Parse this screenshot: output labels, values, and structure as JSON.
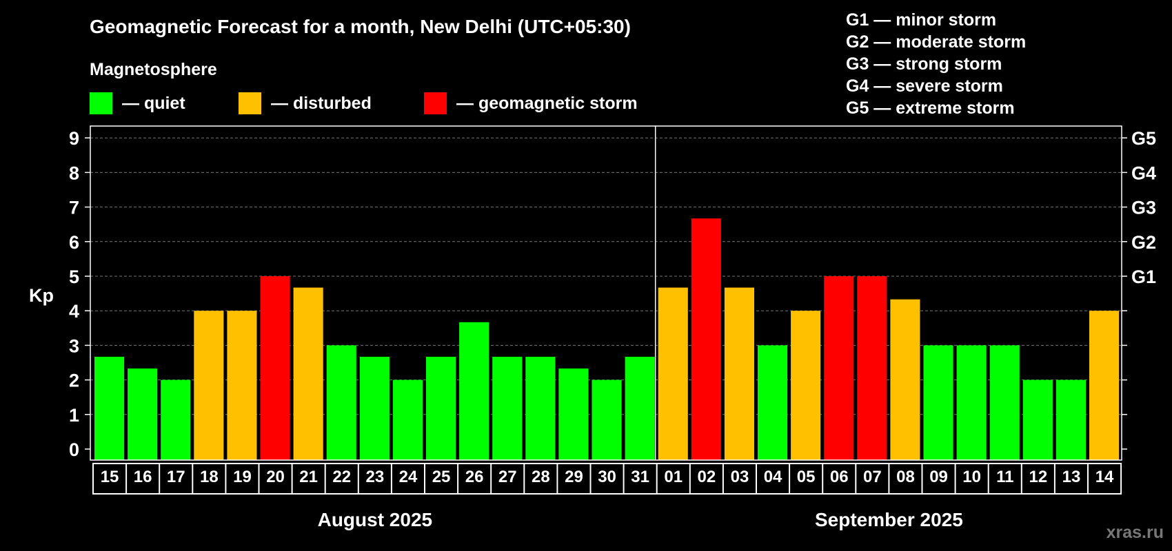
{
  "chart_data": {
    "type": "bar",
    "title": "Geomagnetic Forecast for a month, New Delhi (UTC+05:30)",
    "legend_title": "Magnetosphere",
    "legend": [
      {
        "key": "quiet",
        "label": "— quiet",
        "color": "#00FF00"
      },
      {
        "key": "disturbed",
        "label": "— disturbed",
        "color": "#FFC000"
      },
      {
        "key": "storm",
        "label": "— geomagnetic storm",
        "color": "#FF0000"
      }
    ],
    "storm_scale": [
      "G1 — minor storm",
      "G2 — moderate storm",
      "G3 — strong storm",
      "G4 — severe storm",
      "G5 — extreme storm"
    ],
    "ylabel": "Kp",
    "ylim": [
      0,
      9
    ],
    "yticks": [
      "0",
      "1",
      "2",
      "3",
      "4",
      "5",
      "6",
      "7",
      "8",
      "9"
    ],
    "right_ticks": [
      {
        "value": 5,
        "label": "G1"
      },
      {
        "value": 6,
        "label": "G2"
      },
      {
        "value": 7,
        "label": "G3"
      },
      {
        "value": 8,
        "label": "G4"
      },
      {
        "value": 9,
        "label": "G5"
      }
    ],
    "categories": [
      "15",
      "16",
      "17",
      "18",
      "19",
      "20",
      "21",
      "22",
      "23",
      "24",
      "25",
      "26",
      "27",
      "28",
      "29",
      "30",
      "31",
      "01",
      "02",
      "03",
      "04",
      "05",
      "06",
      "07",
      "08",
      "09",
      "10",
      "11",
      "12",
      "13",
      "14"
    ],
    "values": [
      2.67,
      2.33,
      2.0,
      4.0,
      4.0,
      5.0,
      4.67,
      3.0,
      2.67,
      2.0,
      2.67,
      3.67,
      2.67,
      2.67,
      2.33,
      2.0,
      2.67,
      4.67,
      6.67,
      4.67,
      3.0,
      4.0,
      5.0,
      5.0,
      4.33,
      3.0,
      3.0,
      3.0,
      2.0,
      2.0,
      4.0
    ],
    "levels": [
      "quiet",
      "quiet",
      "quiet",
      "disturbed",
      "disturbed",
      "storm",
      "disturbed",
      "quiet",
      "quiet",
      "quiet",
      "quiet",
      "quiet",
      "quiet",
      "quiet",
      "quiet",
      "quiet",
      "quiet",
      "disturbed",
      "storm",
      "disturbed",
      "quiet",
      "disturbed",
      "storm",
      "storm",
      "disturbed",
      "quiet",
      "quiet",
      "quiet",
      "quiet",
      "quiet",
      "disturbed"
    ],
    "months": [
      {
        "label": "August 2025",
        "days": 17
      },
      {
        "label": "September 2025",
        "days": 14
      }
    ]
  },
  "watermark": "xras.ru"
}
